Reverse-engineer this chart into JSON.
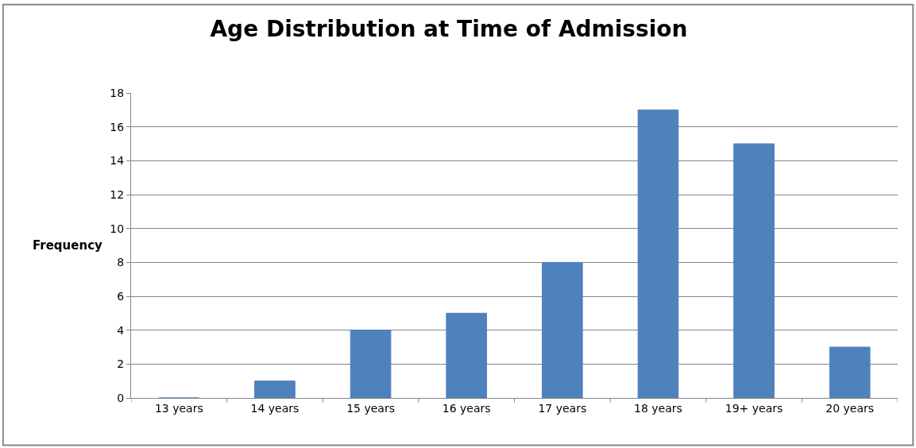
{
  "chart_data": {
    "type": "bar",
    "title": "Age Distribution at Time of Admission",
    "ylabel": "Frequency",
    "categories": [
      "13 years",
      "14 years",
      "15 years",
      "16 years",
      "17 years",
      "18 years",
      "19+ years",
      "20 years"
    ],
    "values": [
      0,
      1,
      4,
      5,
      8,
      17,
      15,
      3
    ],
    "color": "#4f81bd",
    "ylim": [
      0,
      18
    ],
    "yticks": [
      0,
      2,
      4,
      6,
      8,
      10,
      12,
      14,
      16,
      18
    ],
    "grid": "y"
  }
}
